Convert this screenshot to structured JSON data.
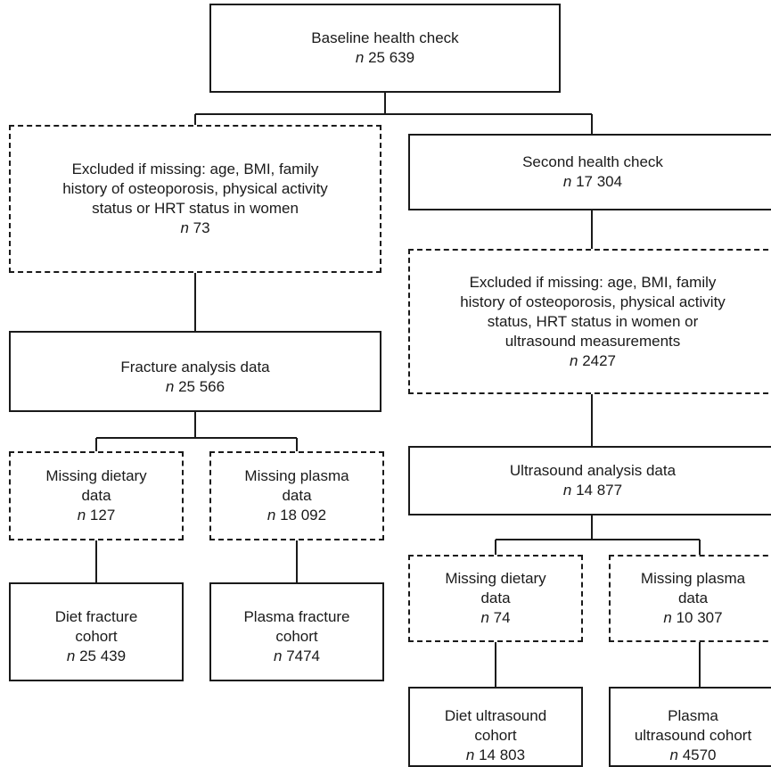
{
  "boxes": {
    "baseline": {
      "label": "Baseline health check",
      "n": "25 639"
    },
    "excluded_baseline": {
      "label": "Excluded if missing: age, BMI, family\nhistory of osteoporosis, physical activity\nstatus or HRT status in women",
      "n": "73"
    },
    "second": {
      "label": "Second health check",
      "n": "17 304"
    },
    "excluded_second": {
      "label": "Excluded if missing: age, BMI, family\nhistory of osteoporosis, physical activity\nstatus, HRT status in women or\nultrasound measurements",
      "n": "2427"
    },
    "fracture": {
      "label": "Fracture analysis data",
      "n": "25 566"
    },
    "ultrasound": {
      "label": "Ultrasound analysis data",
      "n": "14 877"
    },
    "frac_missing_diet": {
      "label": "Missing dietary\ndata",
      "n": "127"
    },
    "frac_missing_plasma": {
      "label": "Missing plasma\ndata",
      "n": "18 092"
    },
    "diet_fracture": {
      "label": "Diet fracture\ncohort",
      "n": "25 439"
    },
    "plasma_fracture": {
      "label": "Plasma fracture\ncohort",
      "n": "7474"
    },
    "us_missing_diet": {
      "label": "Missing dietary\ndata",
      "n": "74"
    },
    "us_missing_plasma": {
      "label": "Missing plasma\ndata",
      "n": "10 307"
    },
    "diet_ultrasound": {
      "label": "Diet ultrasound\ncohort",
      "n": "14 803"
    },
    "plasma_ultrasound": {
      "label": "Plasma\nultrasound cohort",
      "n": "4570"
    }
  },
  "n_prefix": "n"
}
